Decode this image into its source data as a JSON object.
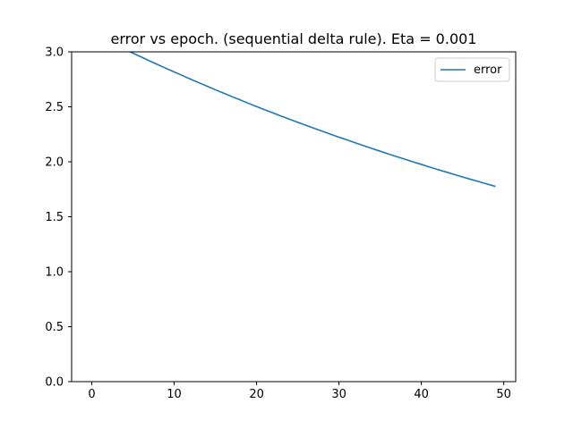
{
  "chart_data": {
    "type": "line",
    "title": "error vs epoch. (sequential delta rule). Eta = 0.001",
    "xlabel": "",
    "ylabel": "",
    "xlim": [
      -2.45,
      51.45
    ],
    "ylim": [
      0.0,
      3.0
    ],
    "xticks": [
      0,
      10,
      20,
      30,
      40,
      50
    ],
    "xtick_labels": [
      "0",
      "10",
      "20",
      "30",
      "40",
      "50"
    ],
    "yticks": [
      0.0,
      0.5,
      1.0,
      1.5,
      2.0,
      2.5,
      3.0
    ],
    "ytick_labels": [
      "0.0",
      "0.5",
      "1.0",
      "1.5",
      "2.0",
      "2.5",
      "3.0"
    ],
    "grid": false,
    "legend": "top-right",
    "series": [
      {
        "name": "error",
        "color": "#1f77b4",
        "x": [
          0,
          1,
          2,
          3,
          4,
          5,
          6,
          7,
          8,
          9,
          10,
          11,
          12,
          13,
          14,
          15,
          16,
          17,
          18,
          19,
          20,
          21,
          22,
          23,
          24,
          25,
          26,
          27,
          28,
          29,
          30,
          31,
          32,
          33,
          34,
          35,
          36,
          37,
          38,
          39,
          40,
          41,
          42,
          43,
          44,
          45,
          46,
          47,
          48,
          49
        ],
        "y": [
          3.17,
          3.133,
          3.096,
          3.06,
          3.024,
          2.988,
          2.953,
          2.918,
          2.884,
          2.85,
          2.817,
          2.784,
          2.751,
          2.719,
          2.687,
          2.655,
          2.624,
          2.593,
          2.563,
          2.532,
          2.502,
          2.473,
          2.444,
          2.415,
          2.387,
          2.359,
          2.331,
          2.304,
          2.277,
          2.25,
          2.224,
          2.198,
          2.172,
          2.146,
          2.121,
          2.096,
          2.071,
          2.047,
          2.023,
          1.999,
          1.976,
          1.952,
          1.929,
          1.907,
          1.884,
          1.862,
          1.84,
          1.819,
          1.797,
          1.776
        ]
      }
    ]
  }
}
